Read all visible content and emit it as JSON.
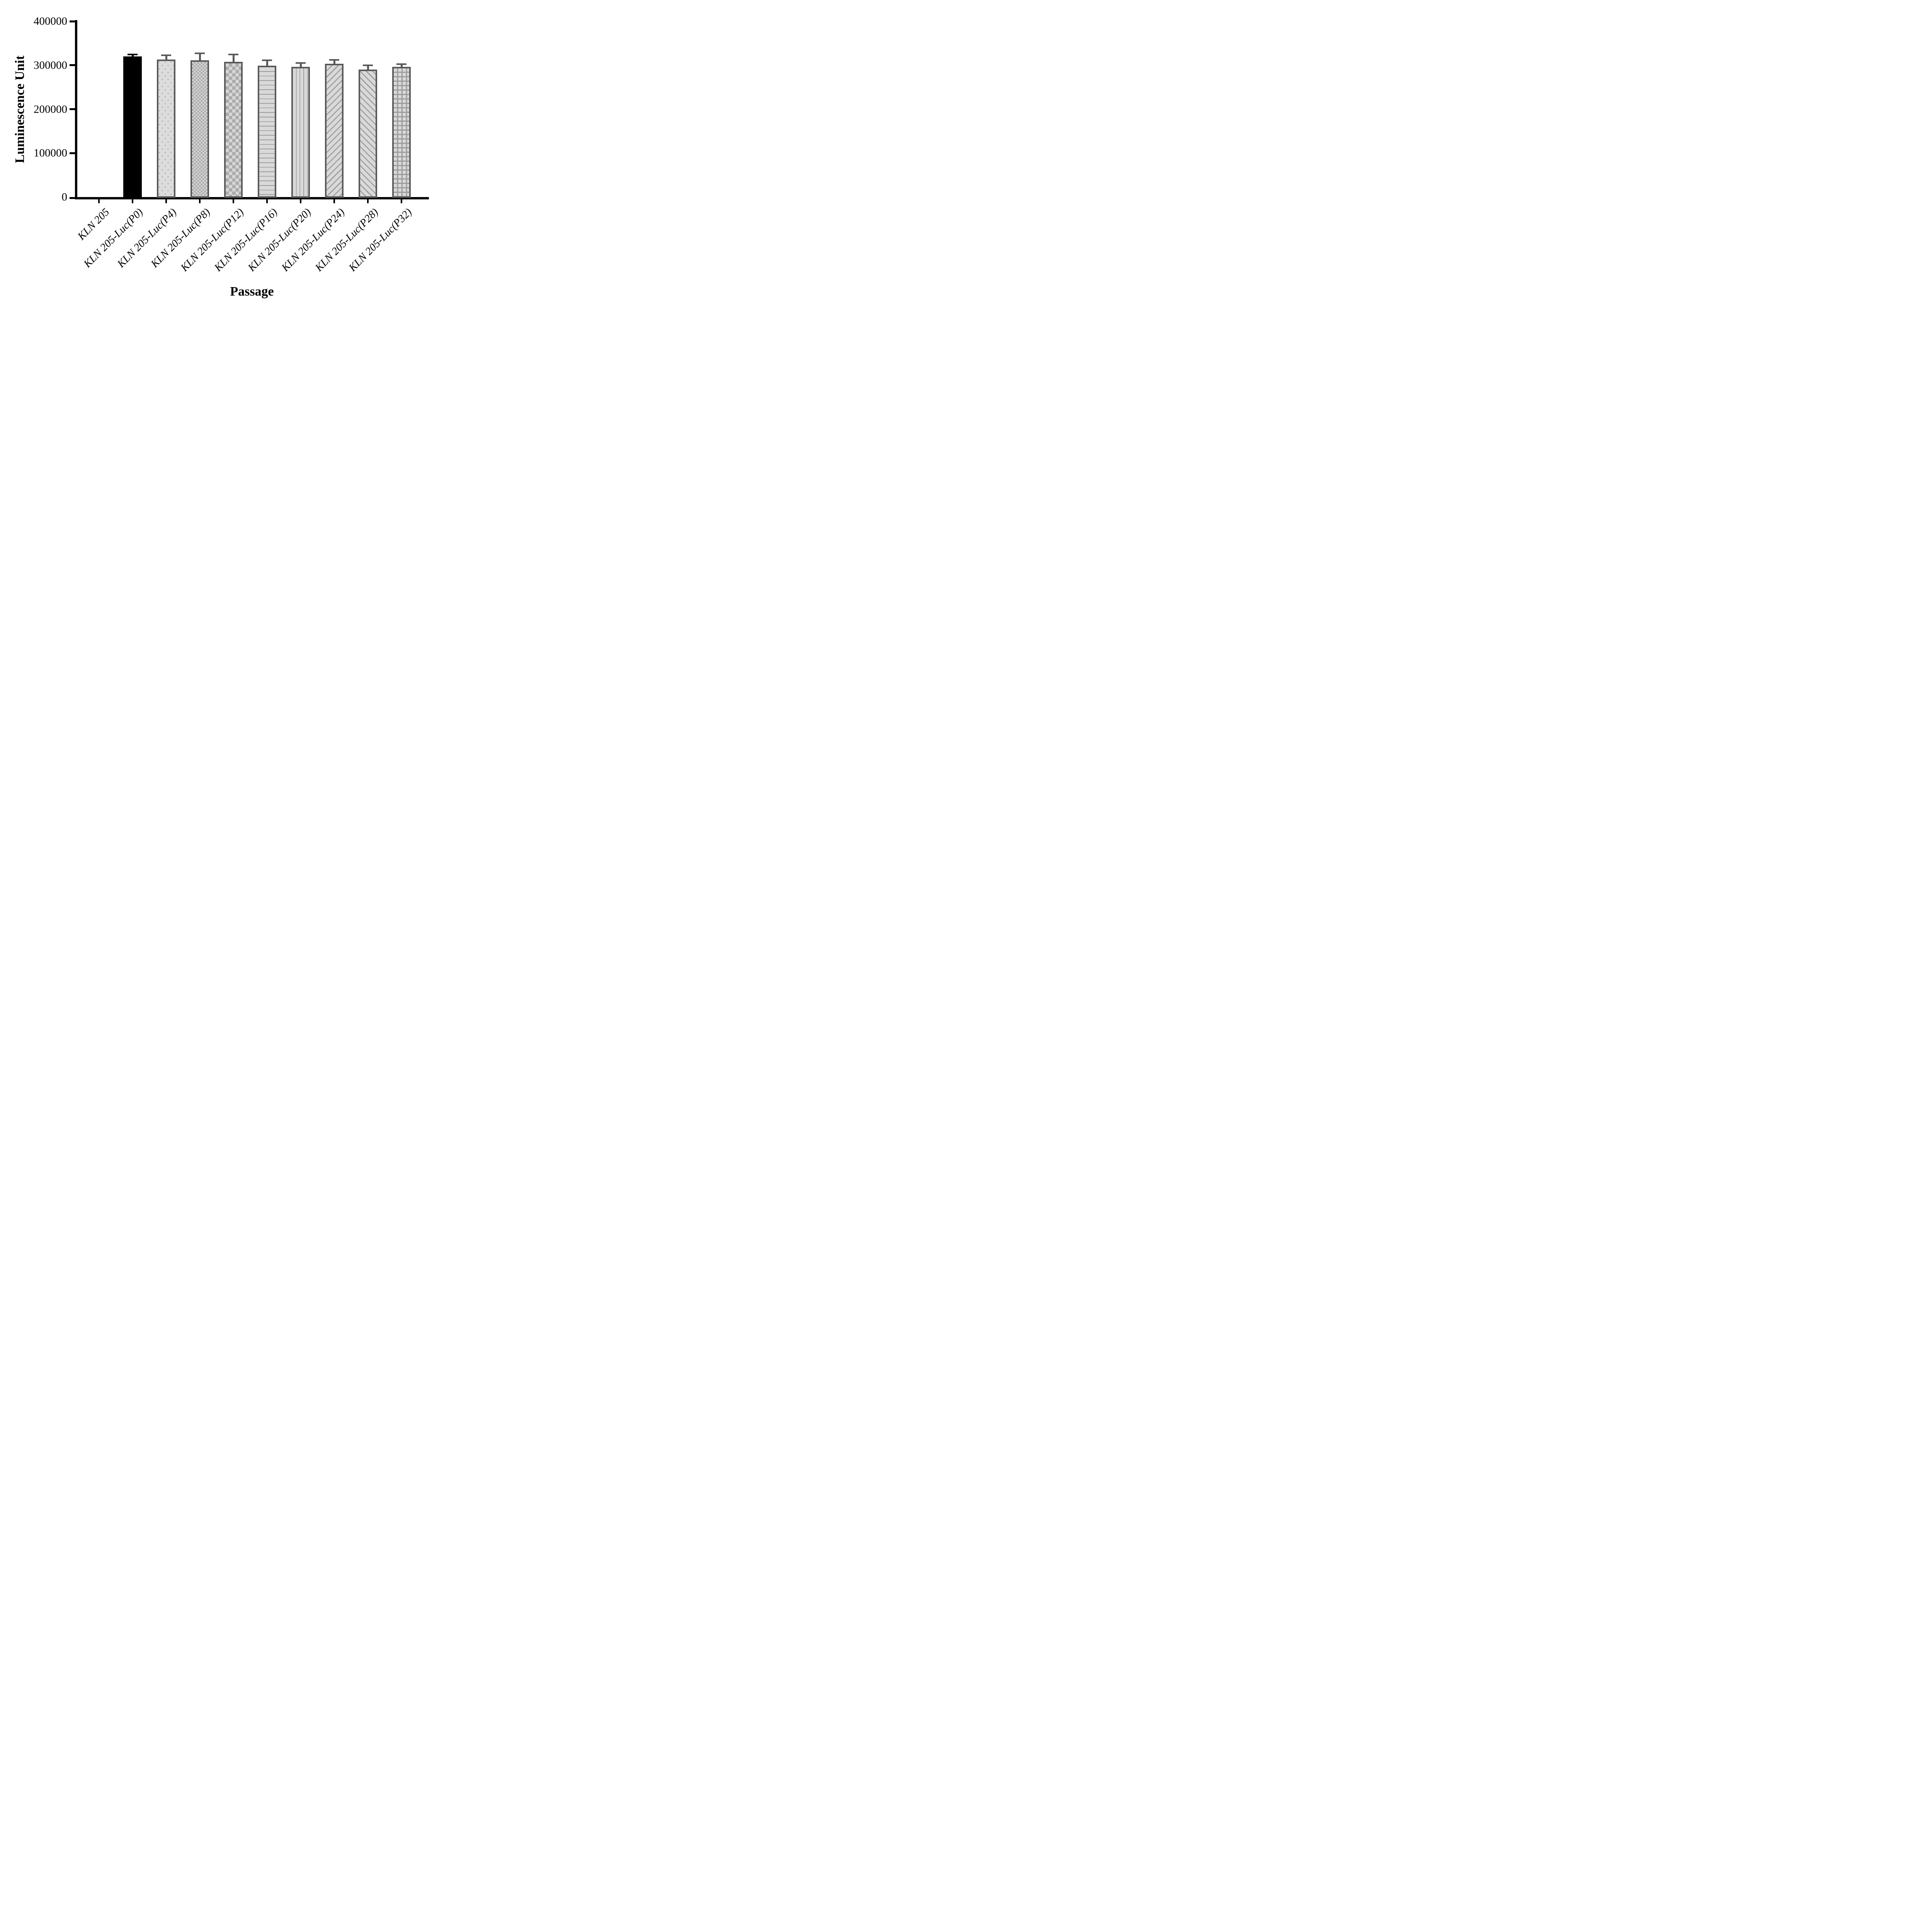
{
  "chart_data": {
    "type": "bar",
    "title": "",
    "xlabel": "Passage",
    "ylabel": "Luminescence Unit",
    "ylim": [
      0,
      400000
    ],
    "yticks": [
      0,
      100000,
      200000,
      300000,
      400000
    ],
    "grid": false,
    "legend": null,
    "categories": [
      "KLN 205",
      "KLN 205-Luc(P0)",
      "KLN 205-Luc(P4)",
      "KLN 205-Luc(P8)",
      "KLN 205-Luc(P12)",
      "KLN 205-Luc(P16)",
      "KLN 205-Luc(P20)",
      "KLN 205-Luc(P24)",
      "KLN 205-Luc(P28)",
      "KLN 205-Luc(P32)"
    ],
    "values": [
      0,
      320000,
      313000,
      311000,
      308000,
      299000,
      296000,
      303000,
      290000,
      296000
    ],
    "errors_plus": [
      0,
      4000,
      10000,
      16000,
      16000,
      12000,
      9000,
      9000,
      10000,
      6000
    ],
    "bar_patterns": [
      "none",
      "solid",
      "dots",
      "checker-fine",
      "checker-coarse",
      "hlines",
      "vlines",
      "diag-up",
      "diag-down",
      "grid"
    ],
    "colors": {
      "solid_bar": "#000000",
      "bar_base": "#d9d9d9",
      "pattern_marks": "#9b9b9b",
      "bar_border": "#58595b",
      "axis": "#000000",
      "error_bar_patterned": "#58595b",
      "error_bar_solid": "#000000",
      "background": "#ffffff"
    }
  }
}
